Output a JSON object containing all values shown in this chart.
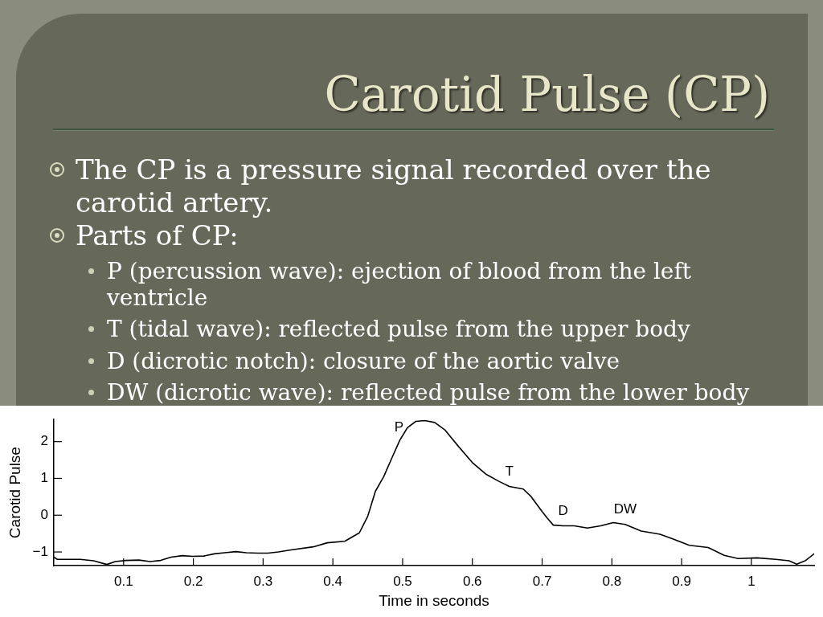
{
  "chart_data": {
    "type": "line",
    "title": "Carotid Pulse (CP)",
    "xlabel": "Time in seconds",
    "ylabel": "Carotid Pulse",
    "x": [
      0,
      0.005,
      0.038,
      0.057,
      0.076,
      0.088,
      0.103,
      0.122,
      0.138,
      0.153,
      0.168,
      0.184,
      0.199,
      0.215,
      0.23,
      0.245,
      0.261,
      0.276,
      0.292,
      0.307,
      0.322,
      0.338,
      0.372,
      0.392,
      0.417,
      0.438,
      0.45,
      0.461,
      0.473,
      0.484,
      0.496,
      0.507,
      0.519,
      0.532,
      0.546,
      0.561,
      0.58,
      0.6,
      0.619,
      0.638,
      0.653,
      0.673,
      0.684,
      0.7,
      0.707,
      0.716,
      0.73,
      0.746,
      0.765,
      0.784,
      0.802,
      0.819,
      0.842,
      0.869,
      0.888,
      0.911,
      0.938,
      0.961,
      0.981,
      1.008,
      1.035,
      1.054,
      1.065,
      1.077,
      1.09
    ],
    "series": [
      {
        "color": "#000000",
        "values": [
          -1.14,
          -1.2,
          -1.2,
          -1.24,
          -1.34,
          -1.26,
          -1.23,
          -1.22,
          -1.26,
          -1.23,
          -1.14,
          -1.1,
          -1.12,
          -1.11,
          -1.05,
          -1.02,
          -0.99,
          -1.02,
          -1.03,
          -1.03,
          -1.0,
          -0.95,
          -0.86,
          -0.75,
          -0.71,
          -0.48,
          -0.03,
          0.65,
          1.05,
          1.53,
          2.04,
          2.38,
          2.55,
          2.57,
          2.52,
          2.31,
          1.87,
          1.43,
          1.12,
          0.92,
          0.78,
          0.71,
          0.51,
          0.1,
          -0.07,
          -0.27,
          -0.29,
          -0.29,
          -0.35,
          -0.29,
          -0.2,
          -0.25,
          -0.43,
          -0.52,
          -0.65,
          -0.82,
          -0.88,
          -1.09,
          -1.18,
          -1.16,
          -1.2,
          -1.24,
          -1.33,
          -1.24,
          -1.05
        ]
      }
    ],
    "xlim": [
      0,
      1.09
    ],
    "ylim": [
      -1.37,
      2.6
    ],
    "xticks": [
      0.1,
      0.2,
      0.3,
      0.4,
      0.5,
      0.6,
      0.7,
      0.8,
      0.9,
      1
    ],
    "yticks": [
      {
        "value": -1,
        "label": "−1"
      },
      0,
      1,
      2
    ],
    "annotations": [
      "The CP is a pressure signal recorded over the carotid artery.",
      "Parts of CP:",
      "P (percussion wave): ejection of blood from the left ventricle",
      "T (tidal wave): reflected pulse from the upper body",
      "D (dicrotic notch): closure of the aortic valve",
      "DW (dicrotic wave): reflected pulse from the lower body",
      {
        "text": "P",
        "x": 0.507,
        "y": 2.38
      },
      {
        "text": "T",
        "x": 0.653,
        "y": 0.78
      },
      {
        "text": "D",
        "x": 0.73,
        "y": -0.29
      },
      {
        "text": "DW",
        "x": 0.819,
        "y": -0.25
      }
    ]
  }
}
